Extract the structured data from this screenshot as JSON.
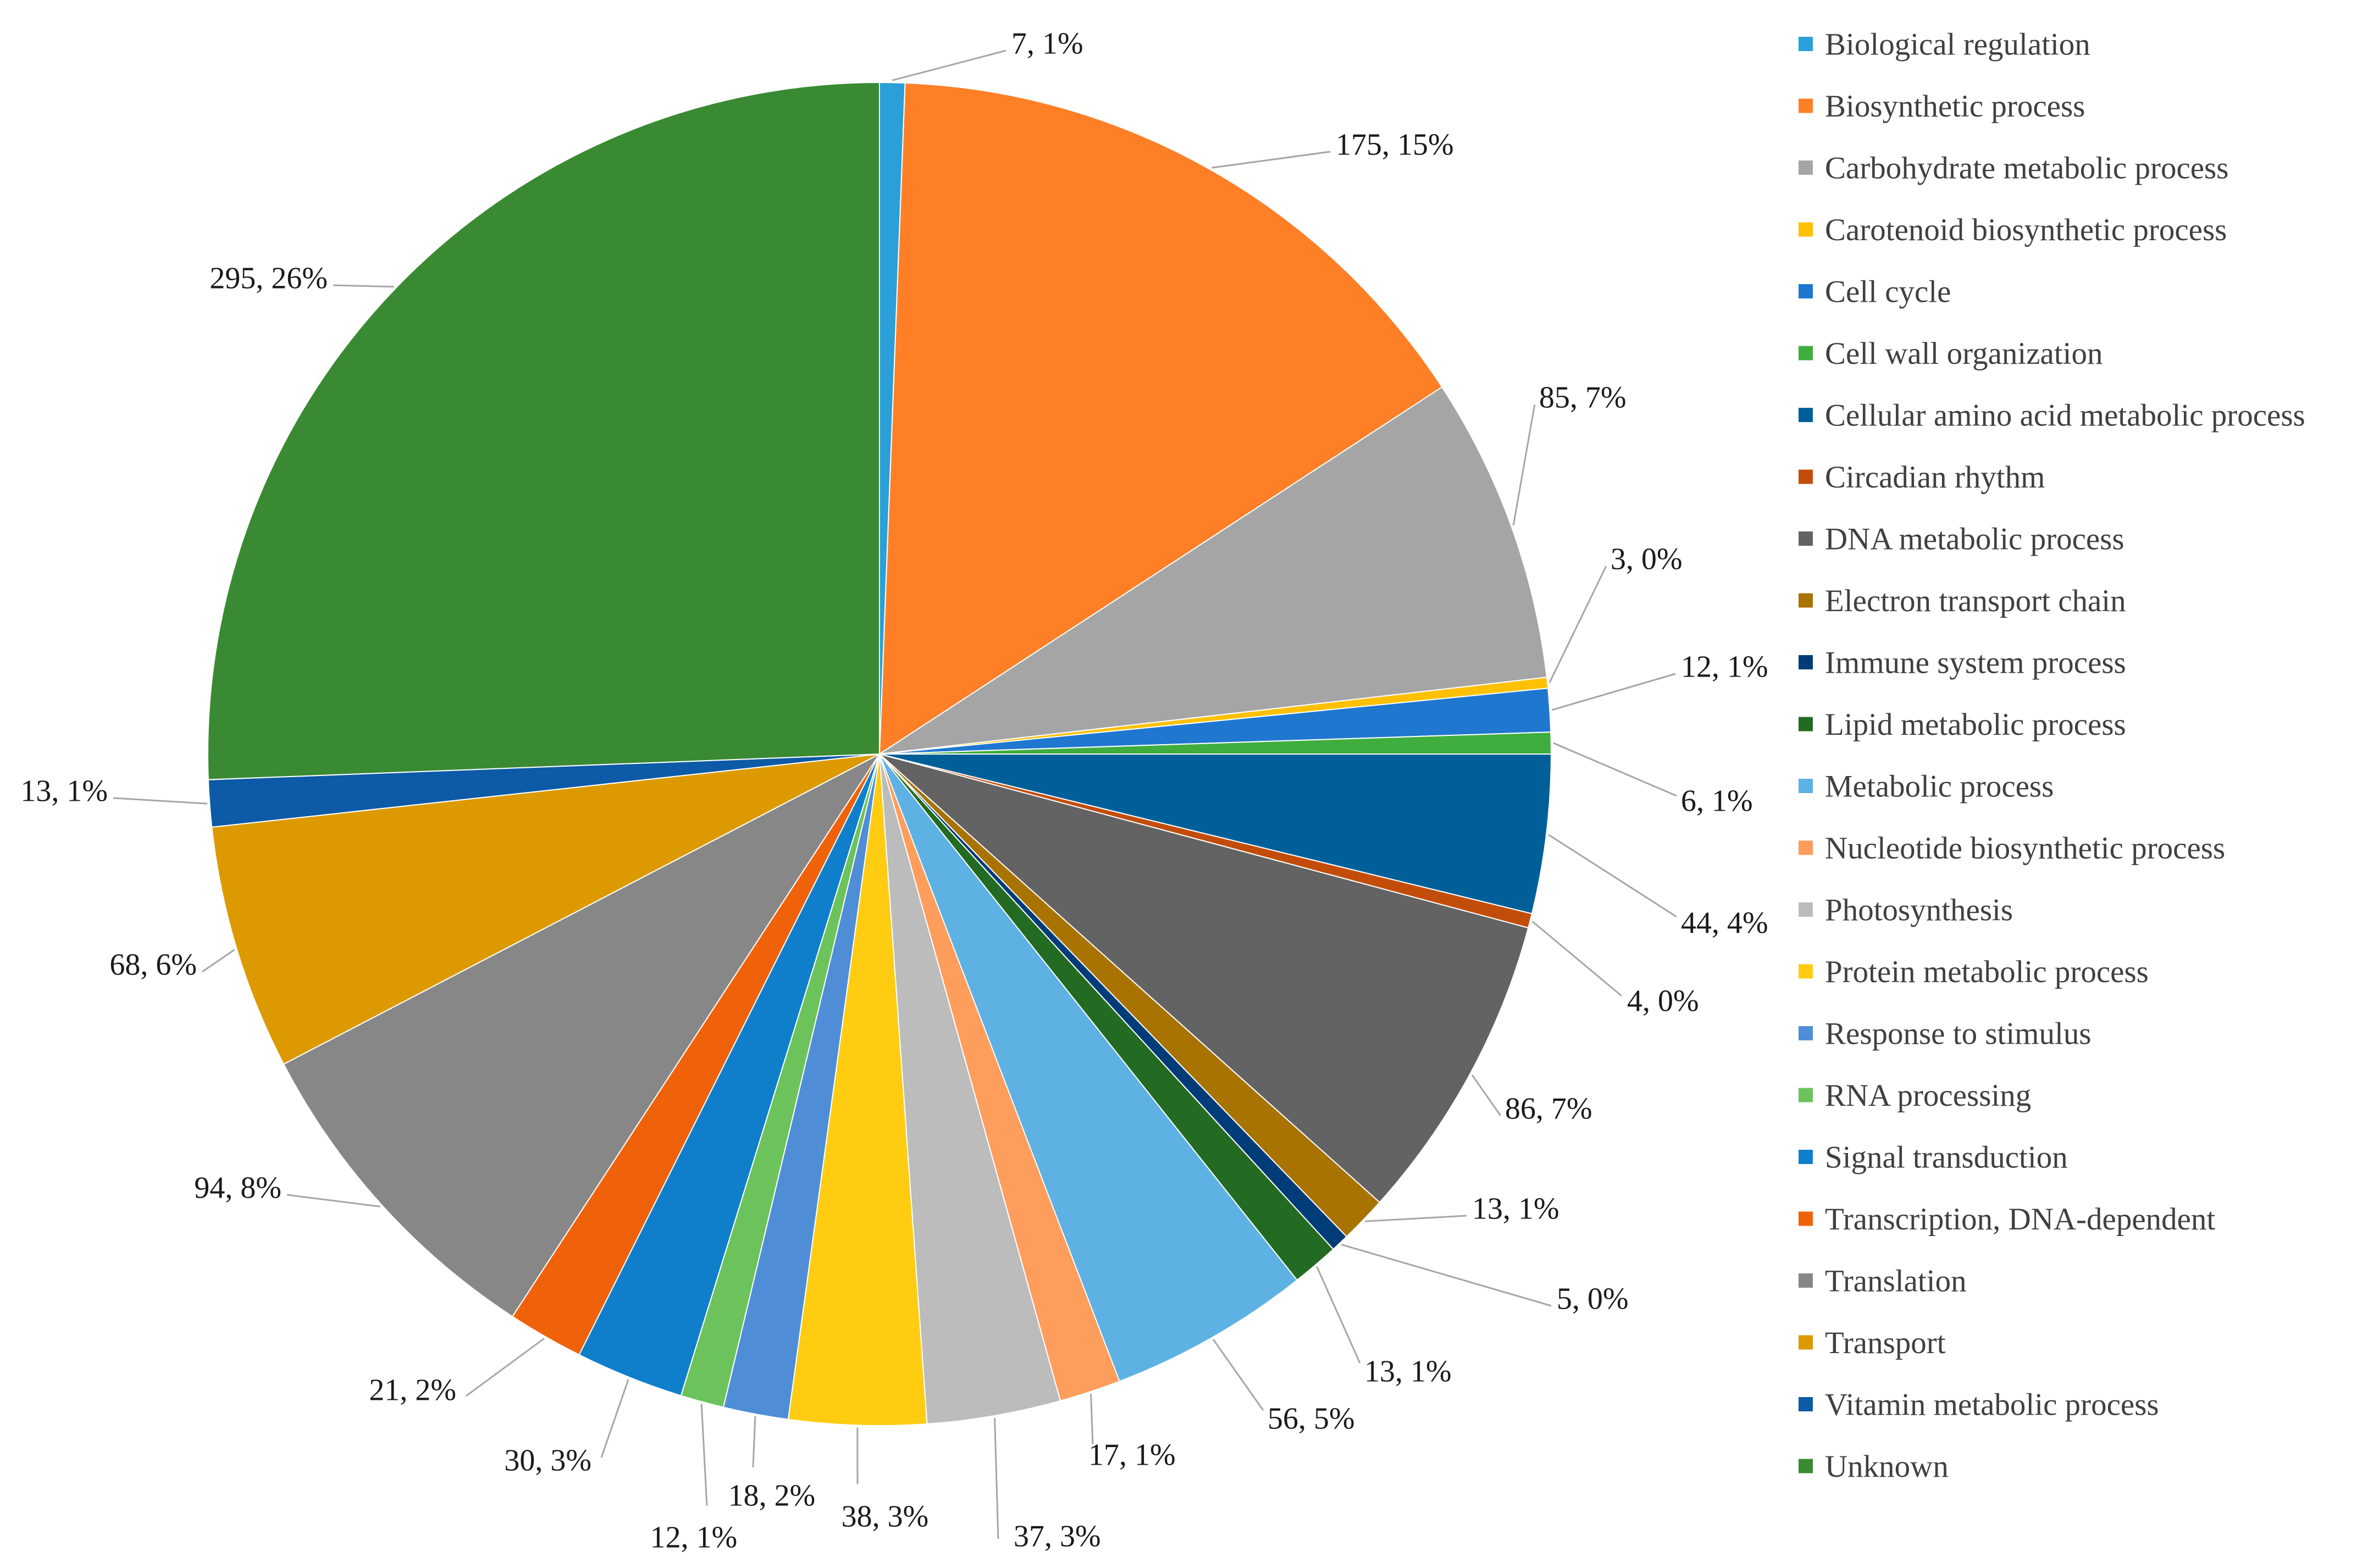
{
  "chart_data": {
    "type": "pie",
    "title": "",
    "legend_position": "right",
    "start_angle_deg": 0,
    "direction": "clockwise",
    "slices": [
      {
        "name": "Biological regulation",
        "value": 7,
        "label": "7, 1%",
        "color": "#2b9fd8"
      },
      {
        "name": "Biosynthetic process",
        "value": 175,
        "label": "175, 15%",
        "color": "#ff7f27"
      },
      {
        "name": "Carbohydrate metabolic process",
        "value": 85,
        "label": "85, 7%",
        "color": "#a5a5a5"
      },
      {
        "name": "Carotenoid biosynthetic process",
        "value": 3,
        "label": "3, 0%",
        "color": "#ffc000"
      },
      {
        "name": "Cell cycle",
        "value": 12,
        "label": "12, 1%",
        "color": "#1f77d0"
      },
      {
        "name": "Cell wall organization",
        "value": 6,
        "label": "6, 1%",
        "color": "#3fae3f"
      },
      {
        "name": "Cellular amino acid metabolic process",
        "value": 44,
        "label": "44, 4%",
        "color": "#005f99"
      },
      {
        "name": "Circadian rhythm",
        "value": 4,
        "label": "4, 0%",
        "color": "#c24d0a"
      },
      {
        "name": "DNA metabolic process",
        "value": 86,
        "label": "86, 7%",
        "color": "#636363"
      },
      {
        "name": "Electron transport chain",
        "value": 13,
        "label": "13, 1%",
        "color": "#a87300"
      },
      {
        "name": "Immune system process",
        "value": 5,
        "label": "5, 0%",
        "color": "#003c78"
      },
      {
        "name": "Lipid metabolic process",
        "value": 13,
        "label": "13, 1%",
        "color": "#236b23"
      },
      {
        "name": "Metabolic process",
        "value": 56,
        "label": "56, 5%",
        "color": "#5eb1e3"
      },
      {
        "name": "Nucleotide biosynthetic process",
        "value": 17,
        "label": "17, 1%",
        "color": "#ff9d5c"
      },
      {
        "name": "Photosynthesis",
        "value": 37,
        "label": "37, 3%",
        "color": "#bcbcbc"
      },
      {
        "name": "Protein metabolic process",
        "value": 38,
        "label": "38, 3%",
        "color": "#ffcc12"
      },
      {
        "name": "Response to stimulus",
        "value": 18,
        "label": "18, 2%",
        "color": "#4f8ed6"
      },
      {
        "name": "RNA processing",
        "value": 12,
        "label": "12, 1%",
        "color": "#6cc35c"
      },
      {
        "name": "Signal transduction",
        "value": 30,
        "label": "30, 3%",
        "color": "#0f7fcc"
      },
      {
        "name": "Transcription, DNA-dependent",
        "value": 21,
        "label": "21, 2%",
        "color": "#f0620a"
      },
      {
        "name": "Translation",
        "value": 94,
        "label": "94, 8%",
        "color": "#878787"
      },
      {
        "name": "Transport",
        "value": 68,
        "label": "68, 6%",
        "color": "#dc9a00"
      },
      {
        "name": "Vitamin metabolic process",
        "value": 13,
        "label": "13, 1%",
        "color": "#0d5aa6"
      },
      {
        "name": "Unknown",
        "value": 295,
        "label": "295, 26%",
        "color": "#3a8a33"
      }
    ]
  }
}
